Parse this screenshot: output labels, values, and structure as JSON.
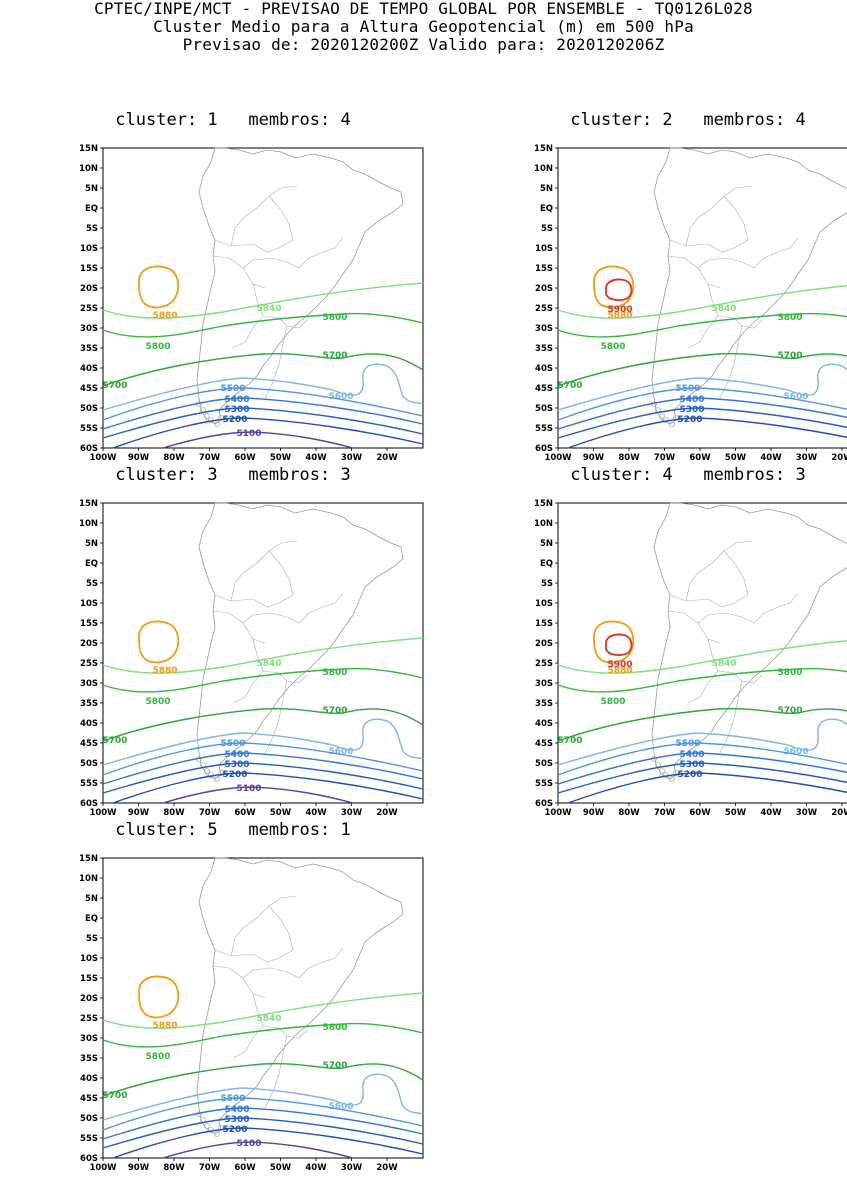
{
  "header": {
    "line1": "CPTEC/INPE/MCT - PREVISAO DE TEMPO GLOBAL POR ENSEMBLE - TQ0126L028",
    "line2": "Cluster Medio para a Altura Geopotencial (m) em 500 hPa",
    "line3": "Previsao de: 2020120200Z    Valido para: 2020120206Z"
  },
  "axes": {
    "lat_labels": [
      "15N",
      "10N",
      "5N",
      "EQ",
      "5S",
      "10S",
      "15S",
      "20S",
      "25S",
      "30S",
      "35S",
      "40S",
      "45S",
      "50S",
      "55S",
      "60S"
    ],
    "lon_labels": [
      "100W",
      "90W",
      "80W",
      "70W",
      "60W",
      "50W",
      "40W",
      "30W",
      "20W"
    ]
  },
  "colors": {
    "c5100": "#5a3ea8",
    "c5200": "#1f4fb5",
    "c5300": "#1f5fc4",
    "c5400": "#2f78d2",
    "c5500": "#4c97e0",
    "c5600": "#7fb5ea",
    "c5700": "#2aa63a",
    "c5800": "#32b83c",
    "c5840": "#7ee07c",
    "c5880": "#f39c12",
    "c5900": "#e0321e",
    "coast": "#9a9a9a",
    "border": "#b0b0b0"
  },
  "panels": [
    {
      "title": "cluster: 1   membros: 4",
      "labels": {
        "l5840": "5840",
        "l5800": "5800",
        "l5880": "5880",
        "l5700": "5700",
        "l5600": "5600",
        "l5500": "5500",
        "l5400": "5400",
        "l5300": "5300",
        "l5200": "5200",
        "l5100": "5100"
      }
    },
    {
      "title": "cluster: 2   membros: 4",
      "labels": {
        "l5840": "5840",
        "l5800": "5800",
        "l5880": "5880",
        "l5900": "5900",
        "l5700": "5700",
        "l5600": "5600",
        "l5500": "5500",
        "l5400": "5400",
        "l5300": "5300",
        "l5200": "5200"
      }
    },
    {
      "title": "cluster: 3   membros: 3",
      "labels": {
        "l5840": "5840",
        "l5800": "5800",
        "l5880": "5880",
        "l5700": "5700",
        "l5600": "5600",
        "l5500": "5500",
        "l5400": "5400",
        "l5300": "5300",
        "l5200": "5200",
        "l5100": "5100"
      }
    },
    {
      "title": "cluster: 4   membros: 3",
      "labels": {
        "l5840": "5840",
        "l5800": "5800",
        "l5880": "5880",
        "l5900": "5900",
        "l5700": "5700",
        "l5600": "5600",
        "l5500": "5500",
        "l5400": "5400",
        "l5300": "5300",
        "l5200": "5200"
      }
    },
    {
      "title": "cluster: 5   membros: 1",
      "labels": {
        "l5840": "5840",
        "l5800": "5800",
        "l5880": "5880",
        "l5700": "5700",
        "l5600": "5600",
        "l5500": "5500",
        "l5400": "5400",
        "l5300": "5300",
        "l5200": "5200",
        "l5100": "5100"
      }
    }
  ]
}
